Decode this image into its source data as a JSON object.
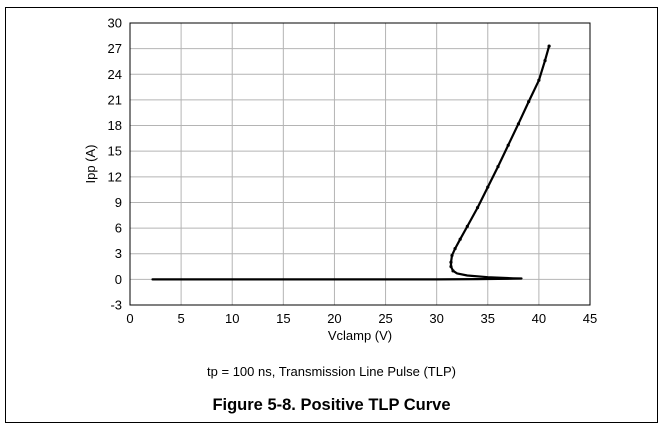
{
  "figure_title": "Figure 5-8. Positive TLP Curve",
  "caption_note": "tp = 100 ns, Transmission Line Pulse (TLP)",
  "colors": {
    "series": "#000000",
    "grid": "#b4b4b4",
    "axis": "#000000"
  },
  "chart_data": {
    "type": "line",
    "xlabel": "Vclamp (V)",
    "ylabel": "Ipp (A)",
    "xlim": [
      0,
      45
    ],
    "ylim": [
      -3,
      30
    ],
    "xticks": [
      0,
      5,
      10,
      15,
      20,
      25,
      30,
      35,
      40,
      45
    ],
    "yticks": [
      -3,
      0,
      3,
      6,
      9,
      12,
      15,
      18,
      21,
      24,
      27,
      30
    ],
    "grid": true,
    "legend": "none",
    "series": [
      {
        "x": [
          2.2,
          10,
          20,
          30,
          34,
          36,
          37.5,
          38.3,
          37.5,
          35,
          33,
          32,
          31.6,
          31.4,
          31.4,
          31.5,
          31.8,
          32.3,
          33,
          34,
          35,
          36,
          37,
          38,
          39,
          40,
          40.6,
          41.0
        ],
        "y": [
          0,
          0,
          0,
          0,
          0.03,
          0.05,
          0.08,
          0.1,
          0.12,
          0.25,
          0.45,
          0.7,
          1.0,
          1.5,
          2.0,
          2.8,
          3.6,
          4.7,
          6.2,
          8.4,
          10.8,
          13.2,
          15.7,
          18.2,
          20.8,
          23.3,
          25.6,
          27.3
        ]
      }
    ]
  }
}
